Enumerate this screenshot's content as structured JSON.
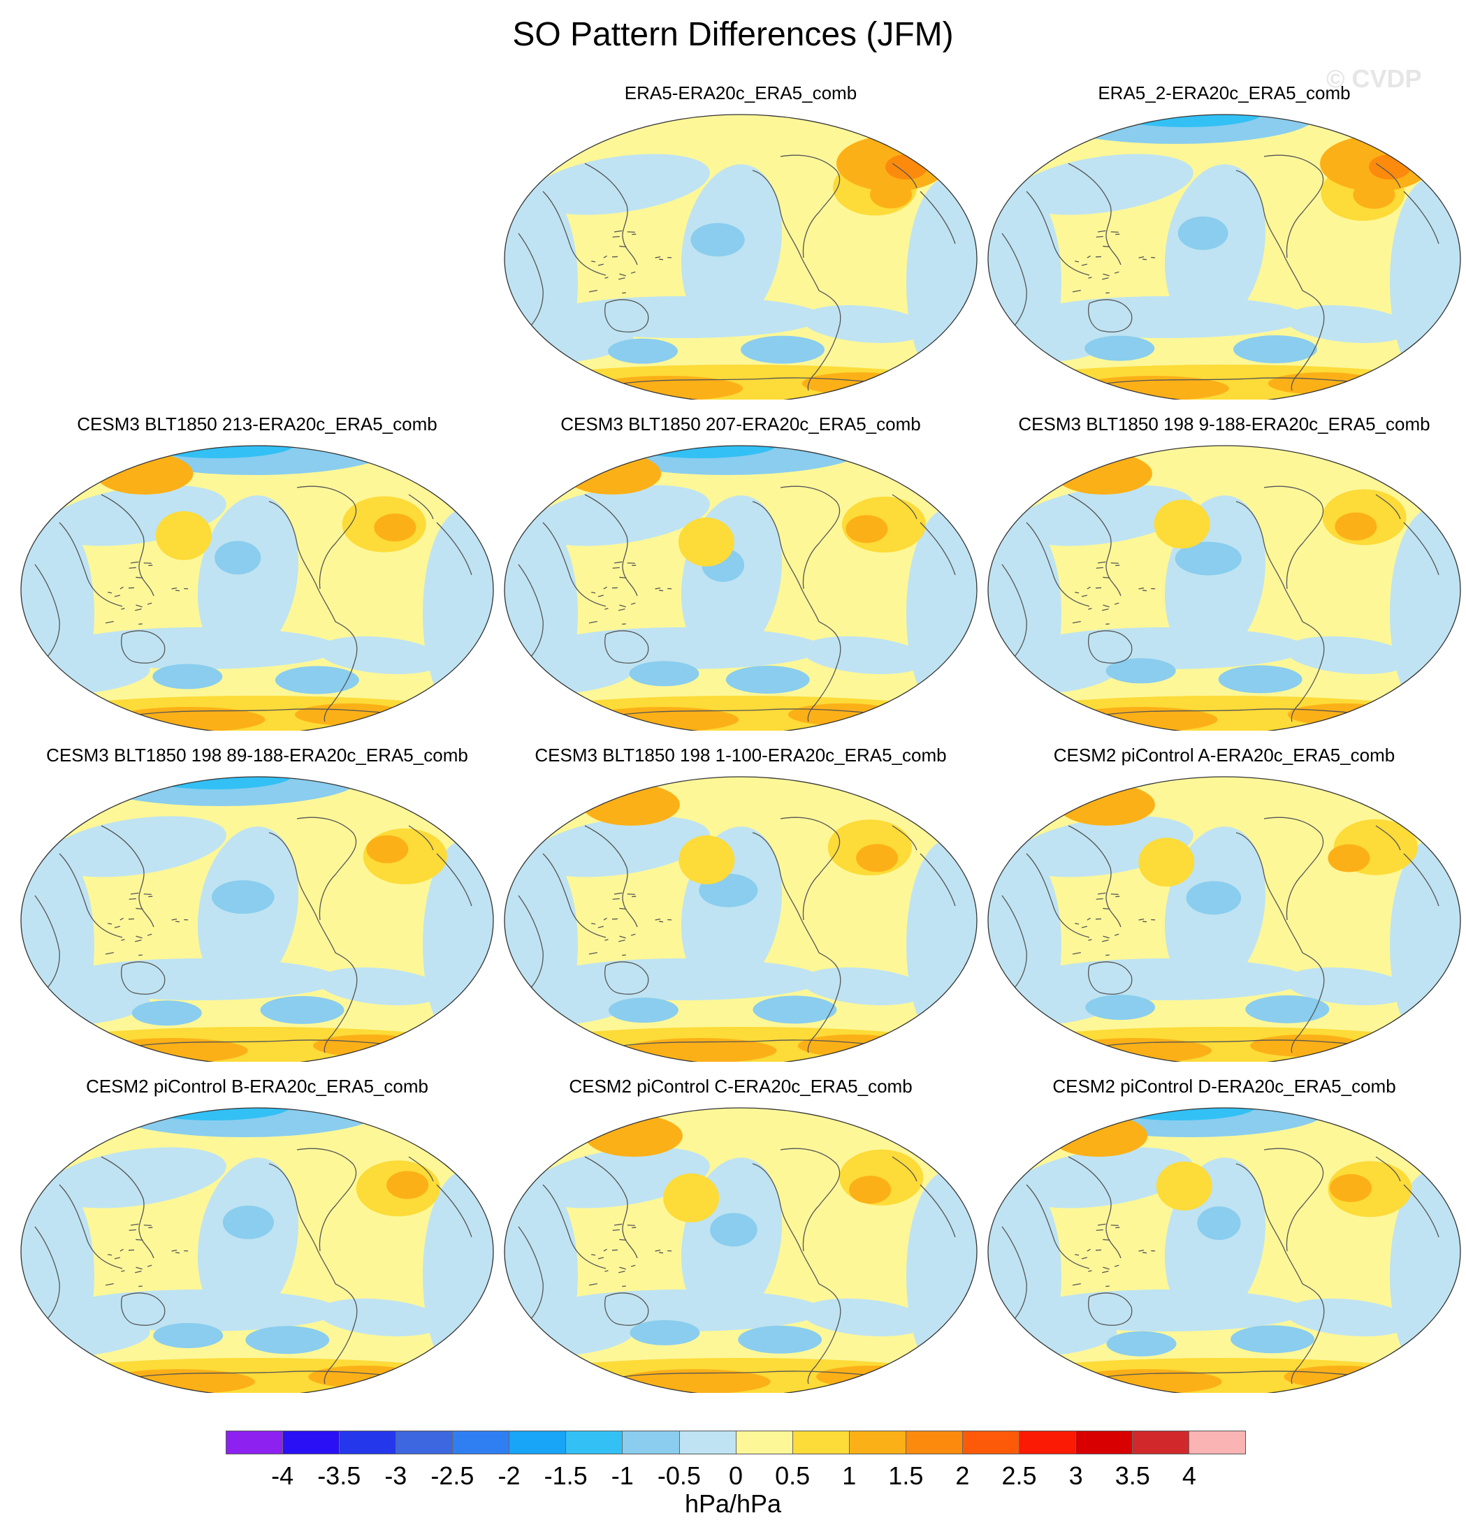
{
  "title": "SO Pattern Differences (JFM)",
  "watermark": "© CVDP",
  "panels": [
    {
      "title": "ERA5-ERA20c_ERA5_comb",
      "row": 0,
      "col": 1,
      "variant": 0
    },
    {
      "title": "ERA5_2-ERA20c_ERA5_comb",
      "row": 0,
      "col": 2,
      "variant": 1
    },
    {
      "title": "CESM3 BLT1850 213-ERA20c_ERA5_comb",
      "row": 1,
      "col": 0,
      "variant": 2
    },
    {
      "title": "CESM3 BLT1850 207-ERA20c_ERA5_comb",
      "row": 1,
      "col": 1,
      "variant": 3
    },
    {
      "title": "CESM3 BLT1850 198 9-188-ERA20c_ERA5_comb",
      "row": 1,
      "col": 2,
      "variant": 4
    },
    {
      "title": "CESM3 BLT1850 198 89-188-ERA20c_ERA5_comb",
      "row": 2,
      "col": 0,
      "variant": 5
    },
    {
      "title": "CESM3 BLT1850 198 1-100-ERA20c_ERA5_comb",
      "row": 2,
      "col": 1,
      "variant": 6
    },
    {
      "title": "CESM2 piControl A-ERA20c_ERA5_comb",
      "row": 2,
      "col": 2,
      "variant": 7
    },
    {
      "title": "CESM2 piControl B-ERA20c_ERA5_comb",
      "row": 3,
      "col": 0,
      "variant": 8
    },
    {
      "title": "CESM2 piControl C-ERA20c_ERA5_comb",
      "row": 3,
      "col": 1,
      "variant": 9
    },
    {
      "title": "CESM2 piControl D-ERA20c_ERA5_comb",
      "row": 3,
      "col": 2,
      "variant": 10
    }
  ],
  "colorbar": {
    "unit": "hPa/hPa",
    "levels": [
      "-4",
      "-3.5",
      "-3",
      "-2.5",
      "-2",
      "-1.5",
      "-1",
      "-0.5",
      "0",
      "0.5",
      "1",
      "1.5",
      "2",
      "2.5",
      "3",
      "3.5",
      "4"
    ],
    "colors": [
      "#8d21f0",
      "#2a10f5",
      "#2537eb",
      "#3d67e0",
      "#2f7ff2",
      "#18a4f7",
      "#33c0f5",
      "#8acdee",
      "#bfe3f2",
      "#fdf798",
      "#fddb38",
      "#fcb017",
      "#fc8a0d",
      "#fc5a08",
      "#fb1a04",
      "#d80000",
      "#d1292b",
      "#fbb4b4"
    ]
  },
  "map_colors": {
    "ocean_base": "#fdf798",
    "neg1": "#bfe3f2",
    "neg2": "#8acdee",
    "neg3": "#33c0f5",
    "pos1": "#fddb38",
    "pos2": "#fcb017",
    "pos3": "#fc8a0d",
    "coast": "#555555"
  }
}
